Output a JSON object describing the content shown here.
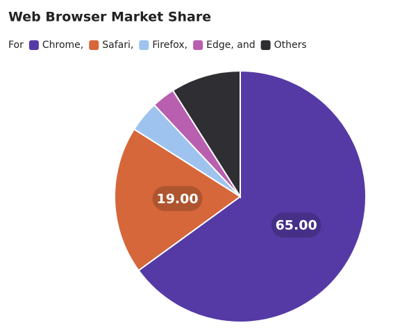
{
  "chart_data": {
    "type": "pie",
    "title": "Web Browser Market Share",
    "legend_title": "For",
    "categories": [
      "Chrome,",
      "Safari,",
      "Firefox,",
      "Edge, and",
      "Others"
    ],
    "values": [
      65,
      19,
      4,
      3,
      9
    ],
    "value_labels": [
      "65.00",
      "19.00",
      null,
      null,
      null
    ],
    "colors": [
      "#553aa5",
      "#d5673a",
      "#9ec3ef",
      "#b85fb0",
      "#2f2f33"
    ],
    "legend": "top-left"
  }
}
